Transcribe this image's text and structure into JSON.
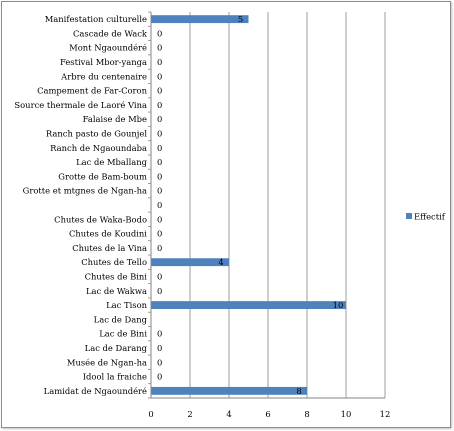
{
  "chart_data": {
    "type": "bar",
    "orientation": "horizontal",
    "categories": [
      "Manifestation culturelle",
      "Cascade de Wack",
      "Mont Ngaoundéré",
      "Festival Mbor-yanga",
      "Arbre du centenaire",
      "Campement de Far-Coron",
      "Source thermale de Laoré Vina",
      "Falaise de Mbe",
      "Ranch pasto de Gounjel",
      "Ranch de Ngaoundaba",
      "Lac de Mballang",
      "Grotte de Bam-boum",
      "Grotte et mtgnes de Ngan-ha",
      "",
      "Chutes de Waka-Bodo",
      "Chutes de Koudini",
      "Chutes de la Vina",
      "Chutes de Tello",
      "Chutes de Bini",
      "Lac de Wakwa",
      "Lac Tison",
      "Lac de Dang",
      "Lac de Bini",
      "Lac de Darang",
      "Musée de Ngan-ha",
      "Idool la fraiche",
      "Lamidat de Ngaoundéré"
    ],
    "series": [
      {
        "name": "Effectif",
        "color": "#4f81bd",
        "values": [
          5,
          0,
          0,
          0,
          0,
          0,
          0,
          0,
          0,
          0,
          0,
          0,
          0,
          0,
          0,
          0,
          0,
          4,
          0,
          0,
          10,
          null,
          0,
          0,
          0,
          0,
          8
        ],
        "labels": [
          "5",
          "0",
          "0",
          "0",
          "0",
          "0",
          "0",
          "0",
          "0",
          "0",
          "0",
          "0",
          "0",
          "0",
          "0",
          "0",
          "0",
          "4",
          "0",
          "0",
          "10",
          "",
          "0",
          "0",
          "0",
          "0",
          "8"
        ]
      }
    ],
    "xlim": [
      0,
      12
    ],
    "xticks": [
      "0",
      "2",
      "4",
      "6",
      "8",
      "10",
      "12"
    ],
    "grid": true,
    "legend_position": "right"
  }
}
